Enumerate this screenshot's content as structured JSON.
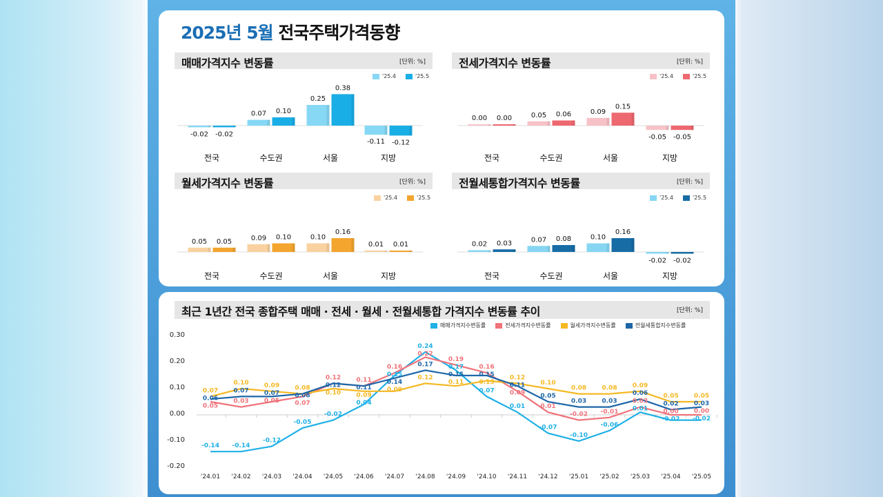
{
  "title": {
    "highlight": "2025년 5월",
    "rest": "전국주택가격동향"
  },
  "unit_label": "[단위: %]",
  "chart_data": [
    {
      "type": "bar",
      "title": "매매가격지수 변동률",
      "categories": [
        "전국",
        "수도권",
        "서울",
        "지방"
      ],
      "series": [
        {
          "name": "'25.4",
          "values": [
            -0.02,
            0.07,
            0.25,
            -0.11
          ],
          "color": "#86d8f5"
        },
        {
          "name": "'25.5",
          "values": [
            -0.02,
            0.1,
            0.38,
            -0.12
          ],
          "color": "#1aaee6"
        }
      ]
    },
    {
      "type": "bar",
      "title": "전세가격지수 변동률",
      "categories": [
        "전국",
        "수도권",
        "서울",
        "지방"
      ],
      "series": [
        {
          "name": "'25.4",
          "values": [
            0.0,
            0.05,
            0.09,
            -0.05
          ],
          "color": "#f7c2c7"
        },
        {
          "name": "'25.5",
          "values": [
            0.0,
            0.06,
            0.15,
            -0.05
          ],
          "color": "#ee6870"
        }
      ]
    },
    {
      "type": "bar",
      "title": "월세가격지수 변동률",
      "categories": [
        "전국",
        "수도권",
        "서울",
        "지방"
      ],
      "series": [
        {
          "name": "'25.4",
          "values": [
            0.05,
            0.09,
            0.1,
            0.01
          ],
          "color": "#f9d2a0"
        },
        {
          "name": "'25.5",
          "values": [
            0.05,
            0.1,
            0.16,
            0.01
          ],
          "color": "#f3a52e"
        }
      ]
    },
    {
      "type": "bar",
      "title": "전월세통합가격지수 변동률",
      "categories": [
        "전국",
        "수도권",
        "서울",
        "지방"
      ],
      "series": [
        {
          "name": "'25.4",
          "values": [
            0.02,
            0.07,
            0.1,
            -0.02
          ],
          "color": "#86d6f3"
        },
        {
          "name": "'25.5",
          "values": [
            0.03,
            0.08,
            0.16,
            -0.02
          ],
          "color": "#176ca6"
        }
      ]
    },
    {
      "type": "line",
      "title": "최근 1년간 전국 종합주택 매매 · 전세 · 월세 · 전월세통합 가격지수 변동률 추이",
      "x": [
        "'24.01",
        "'24.02",
        "'24.03",
        "'24.04",
        "'24.05",
        "'24.06",
        "'24.07",
        "'24.08",
        "'24.09",
        "'24.10",
        "'24.11",
        "'24.12",
        "'25.01",
        "'25.02",
        "'25.03",
        "'25.04",
        "'25.05"
      ],
      "ylim": [
        -0.2,
        0.3
      ],
      "yticks": [
        "0.30",
        "0.20",
        "0.10",
        "0.00",
        "-0.10",
        "-0.20"
      ],
      "legend_position": "top-right",
      "series": [
        {
          "name": "매매가격지수변동률",
          "color": "#1fb0e6",
          "values": [
            -0.14,
            -0.14,
            -0.12,
            -0.05,
            -0.02,
            0.04,
            0.15,
            0.24,
            0.17,
            0.07,
            0.01,
            -0.07,
            -0.1,
            -0.06,
            0.01,
            -0.02,
            -0.02
          ]
        },
        {
          "name": "전세가격지수변동률",
          "color": "#f0727a",
          "values": [
            0.05,
            0.03,
            0.05,
            0.07,
            0.12,
            0.11,
            0.16,
            0.22,
            0.19,
            0.16,
            0.09,
            0.01,
            -0.02,
            -0.01,
            0.03,
            0.0,
            0.0
          ]
        },
        {
          "name": "월세가격지수변동률",
          "color": "#f5b823",
          "values": [
            0.07,
            0.1,
            0.09,
            0.08,
            0.1,
            0.09,
            0.09,
            0.12,
            0.11,
            0.13,
            0.12,
            0.1,
            0.08,
            0.08,
            0.09,
            0.05,
            0.05
          ]
        },
        {
          "name": "전월세통합지수변동률",
          "color": "#1d66a8",
          "values": [
            0.06,
            0.07,
            0.07,
            0.08,
            0.12,
            0.11,
            0.14,
            0.17,
            0.15,
            0.15,
            0.11,
            0.05,
            0.03,
            0.03,
            0.06,
            0.02,
            0.03
          ]
        }
      ]
    }
  ]
}
